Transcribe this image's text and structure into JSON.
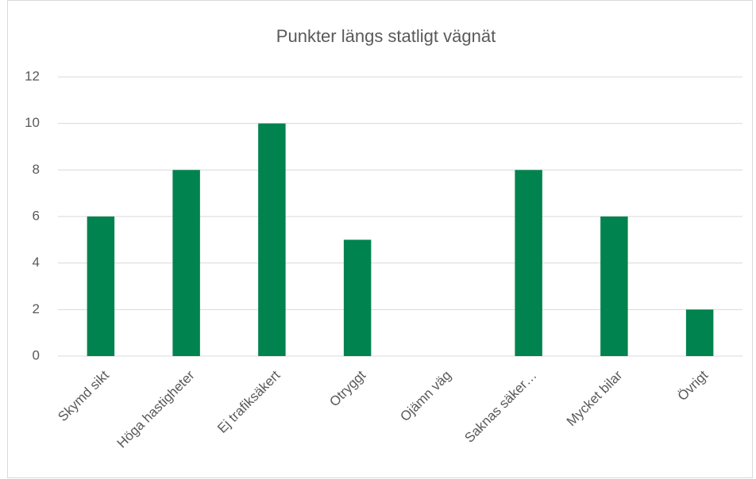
{
  "chart_data": {
    "type": "bar",
    "title": "Punkter längs statligt vägnät",
    "categories": [
      "Skymd sikt",
      "Höga hastigheter",
      "Ej trafiksäkert",
      "Otryggt",
      "Ojämn väg",
      "Saknas säker…",
      "Mycket bilar",
      "Övrigt"
    ],
    "values": [
      6,
      8,
      10,
      5,
      0,
      8,
      6,
      2
    ],
    "color": "#00834e",
    "ylim": [
      0,
      12
    ],
    "yticks": [
      0,
      2,
      4,
      6,
      8,
      10,
      12
    ],
    "grid": true
  }
}
